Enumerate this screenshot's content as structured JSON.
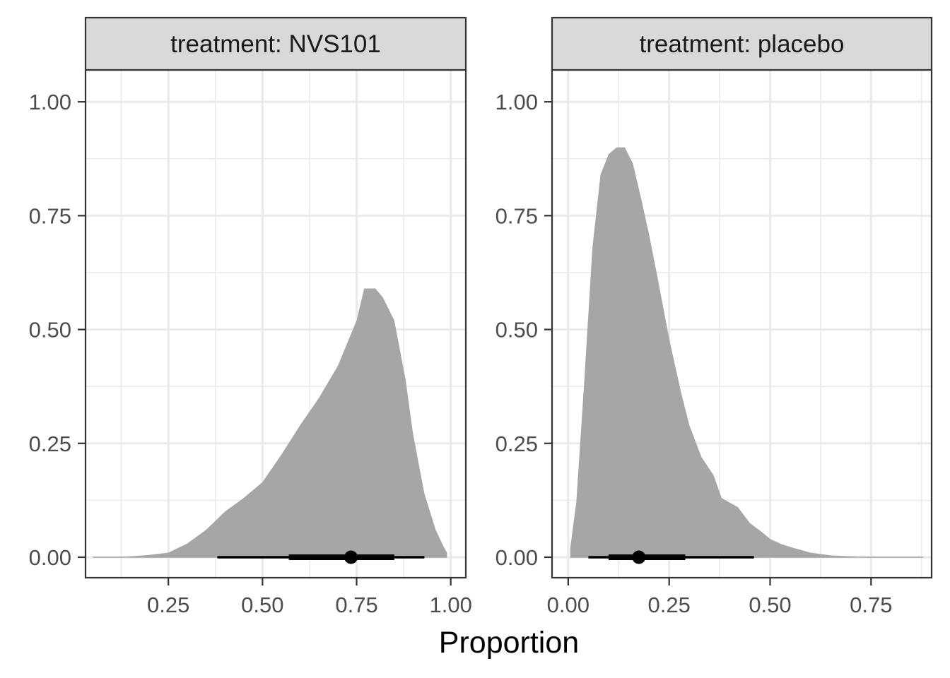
{
  "chart_data": {
    "type": "area",
    "xlabel": "Proportion",
    "ylabel": "",
    "grid": true,
    "colors": {
      "density": "#a6a6a6",
      "interval": "#000000",
      "strip_fill": "#d9d9d9",
      "grid": "#ebebeb",
      "panel_border": "#333333"
    },
    "panels": [
      {
        "strip_label": "treatment: NVS101",
        "xlim": [
          0.03,
          1.04
        ],
        "ylim": [
          -0.045,
          1.07
        ],
        "x_ticks": [
          0.25,
          0.5,
          0.75,
          1.0
        ],
        "x_tick_labels": [
          "0.25",
          "0.50",
          "0.75",
          "1.00"
        ],
        "y_ticks": [
          0,
          0.25,
          0.5,
          0.75,
          1.0
        ],
        "y_tick_labels": [
          "0.00",
          "0.25",
          "0.50",
          "0.75",
          "1.00"
        ],
        "density": {
          "x": [
            0.05,
            0.1,
            0.15,
            0.2,
            0.25,
            0.3,
            0.35,
            0.4,
            0.45,
            0.5,
            0.55,
            0.6,
            0.65,
            0.7,
            0.75,
            0.77,
            0.8,
            0.82,
            0.85,
            0.88,
            0.9,
            0.93,
            0.96,
            0.98,
            0.99
          ],
          "y": [
            0.0,
            0.0,
            0.002,
            0.005,
            0.01,
            0.03,
            0.06,
            0.1,
            0.13,
            0.165,
            0.225,
            0.29,
            0.35,
            0.42,
            0.52,
            0.59,
            0.59,
            0.57,
            0.52,
            0.39,
            0.27,
            0.14,
            0.06,
            0.025,
            0.01
          ]
        },
        "point": 0.735,
        "interval_thick": [
          0.57,
          0.85
        ],
        "interval_thin": [
          0.38,
          0.93
        ]
      },
      {
        "strip_label": "treatment: placebo",
        "xlim": [
          -0.04,
          0.9
        ],
        "ylim": [
          -0.045,
          1.07
        ],
        "x_ticks": [
          0.0,
          0.25,
          0.5,
          0.75
        ],
        "x_tick_labels": [
          "0.00",
          "0.25",
          "0.50",
          "0.75"
        ],
        "y_ticks": [
          0,
          0.25,
          0.5,
          0.75,
          1.0
        ],
        "y_tick_labels": [
          "0.00",
          "0.25",
          "0.50",
          "0.75",
          "1.00"
        ],
        "density": {
          "x": [
            0.005,
            0.02,
            0.04,
            0.06,
            0.08,
            0.1,
            0.12,
            0.14,
            0.16,
            0.18,
            0.2,
            0.22,
            0.25,
            0.28,
            0.3,
            0.33,
            0.36,
            0.38,
            0.4,
            0.42,
            0.45,
            0.48,
            0.5,
            0.53,
            0.56,
            0.6,
            0.65,
            0.7,
            0.75,
            0.8,
            0.85,
            0.88
          ],
          "y": [
            0.02,
            0.12,
            0.39,
            0.68,
            0.84,
            0.885,
            0.9,
            0.9,
            0.865,
            0.79,
            0.71,
            0.62,
            0.48,
            0.36,
            0.29,
            0.22,
            0.18,
            0.13,
            0.12,
            0.11,
            0.075,
            0.055,
            0.04,
            0.028,
            0.02,
            0.01,
            0.004,
            0.002,
            0.001,
            0.0,
            0.0,
            0.0
          ]
        },
        "point": 0.175,
        "interval_thick": [
          0.1,
          0.29
        ],
        "interval_thin": [
          0.05,
          0.46
        ]
      }
    ]
  }
}
